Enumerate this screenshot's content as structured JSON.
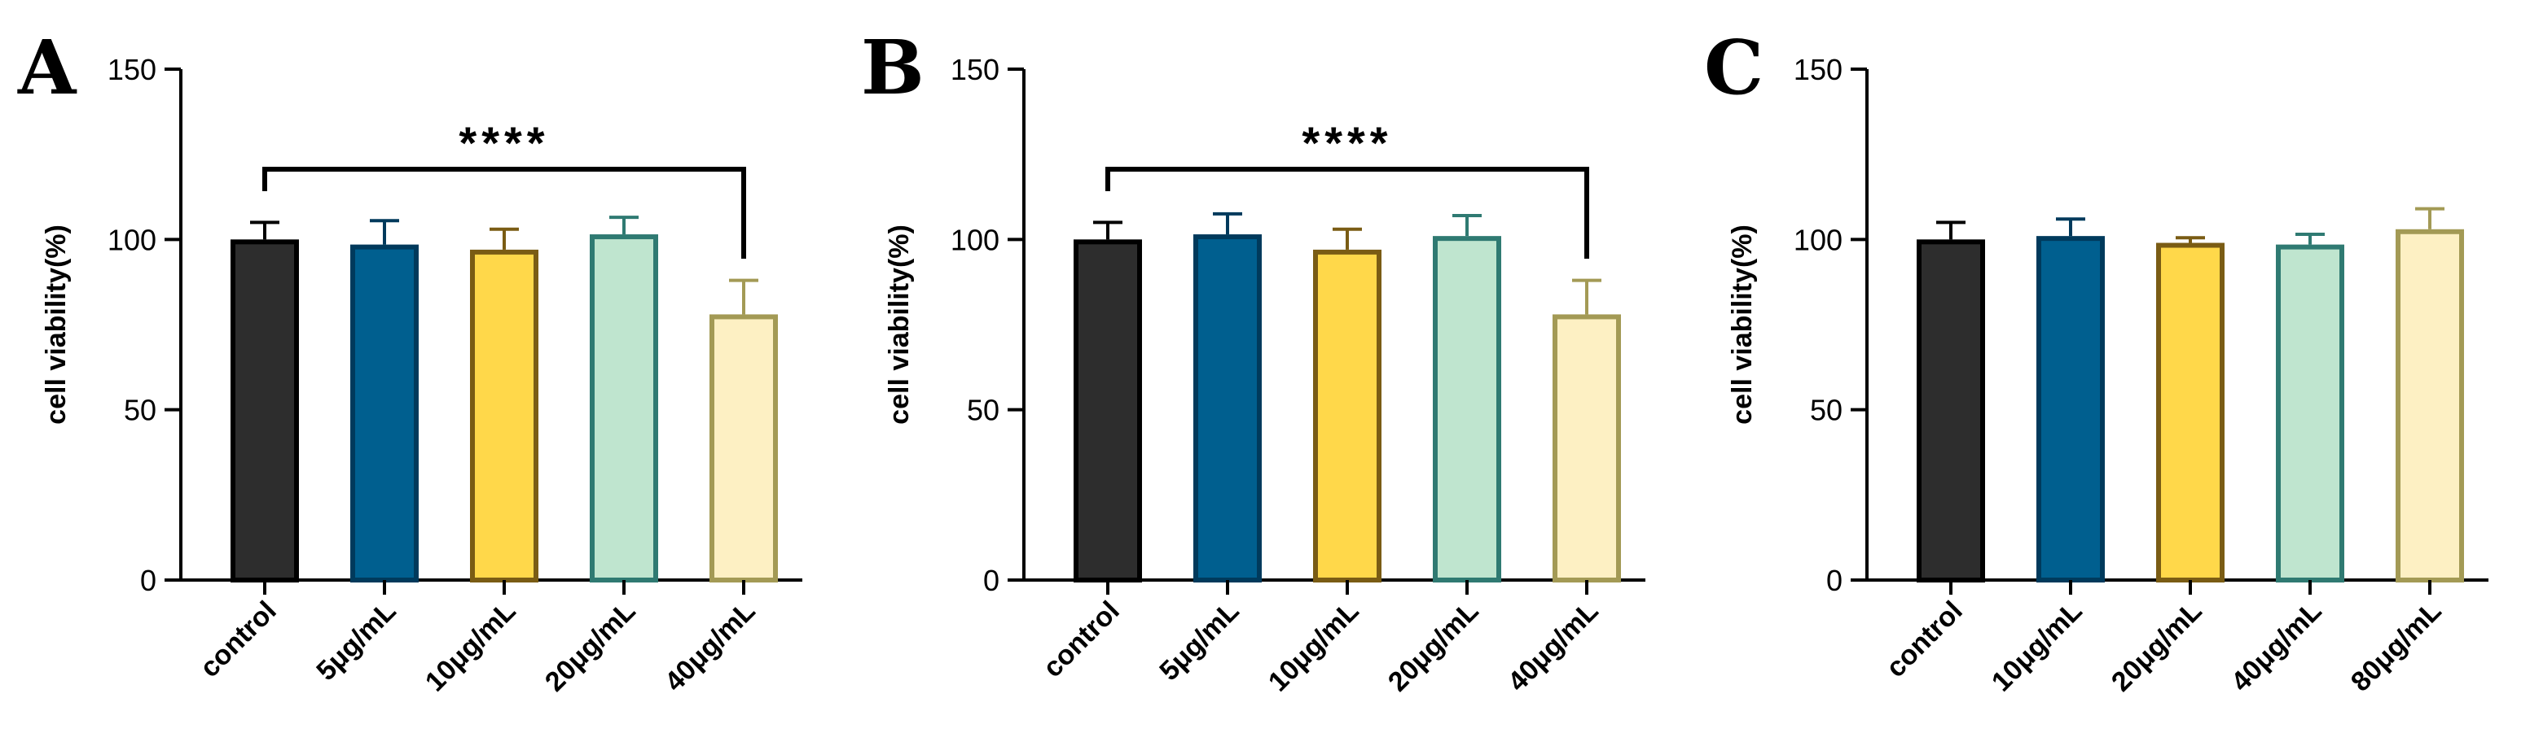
{
  "chart_data": [
    {
      "panel": "A",
      "type": "bar",
      "ylabel": "cell viability(%)",
      "ylim": [
        0,
        150
      ],
      "yticks": [
        0,
        50,
        100,
        150
      ],
      "categories": [
        "control",
        "5μg/mL",
        "10μg/mL",
        "20μg/mL",
        "40μg/mL"
      ],
      "values": [
        100,
        98.5,
        97,
        101.5,
        78
      ],
      "errors": [
        5,
        7,
        6,
        5,
        10
      ],
      "fill_colors": [
        "#2d2d2d",
        "#005f8f",
        "#ffd84a",
        "#bfe5cf",
        "#fdf0c3"
      ],
      "edge_colors": [
        "#000000",
        "#003a5c",
        "#7a5c14",
        "#2f7a72",
        "#a39a55"
      ],
      "significance": {
        "label": "****",
        "from": 0,
        "to": 4
      }
    },
    {
      "panel": "B",
      "type": "bar",
      "ylabel": "cell viability(%)",
      "ylim": [
        0,
        150
      ],
      "yticks": [
        0,
        50,
        100,
        150
      ],
      "categories": [
        "control",
        "5μg/mL",
        "10μg/mL",
        "20μg/mL",
        "40μg/mL"
      ],
      "values": [
        100,
        101.5,
        97,
        101,
        78
      ],
      "errors": [
        5,
        6,
        6,
        6,
        10
      ],
      "fill_colors": [
        "#2d2d2d",
        "#005f8f",
        "#ffd84a",
        "#bfe5cf",
        "#fdf0c3"
      ],
      "edge_colors": [
        "#000000",
        "#003a5c",
        "#7a5c14",
        "#2f7a72",
        "#a39a55"
      ],
      "significance": {
        "label": "****",
        "from": 0,
        "to": 4
      }
    },
    {
      "panel": "C",
      "type": "bar",
      "ylabel": "cell viability(%)",
      "ylim": [
        0,
        150
      ],
      "yticks": [
        0,
        50,
        100,
        150
      ],
      "categories": [
        "control",
        "10μg/mL",
        "20μg/mL",
        "40μg/mL",
        "80μg/mL"
      ],
      "values": [
        100,
        101,
        99,
        98.5,
        103
      ],
      "errors": [
        5,
        5,
        1.5,
        3,
        6
      ],
      "fill_colors": [
        "#2d2d2d",
        "#005f8f",
        "#ffd84a",
        "#bfe5cf",
        "#fdf0c3"
      ],
      "edge_colors": [
        "#000000",
        "#003a5c",
        "#7a5c14",
        "#2f7a72",
        "#a39a55"
      ],
      "significance": null
    }
  ]
}
